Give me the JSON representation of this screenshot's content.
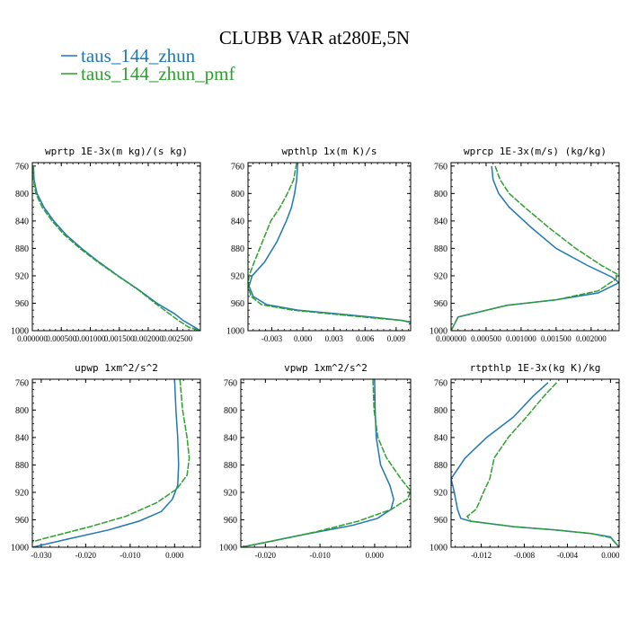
{
  "title": "CLUBB VAR at280E,5N",
  "legend": [
    {
      "name": "taus_144_zhun",
      "color": "#1f77b4"
    },
    {
      "name": "taus_144_zhun_pmf",
      "color": "#2ca02c"
    }
  ],
  "chart_data": [
    {
      "type": "line",
      "title": "wprtp  1E-3x(m kg)/(s kg)",
      "xlim": [
        0,
        0.0029
      ],
      "ylim": [
        1000,
        755
      ],
      "y_reversed": true,
      "yticks": [
        760,
        800,
        840,
        880,
        920,
        960,
        1000
      ],
      "xticks": [
        0,
        0.0005,
        0.001,
        0.0015,
        0.002,
        0.0025
      ],
      "xtick_labels": [
        "0.000000",
        "0.000500",
        "0.001000",
        "0.001500",
        "0.002000",
        "0.002500"
      ],
      "series": [
        {
          "name": "taus_144_zhun",
          "points": [
            [
              2e-05,
              760
            ],
            [
              3e-05,
              780
            ],
            [
              8e-05,
              800
            ],
            [
              0.0002,
              820
            ],
            [
              0.00037,
              840
            ],
            [
              0.00058,
              860
            ],
            [
              0.00085,
              880
            ],
            [
              0.00115,
              900
            ],
            [
              0.00148,
              920
            ],
            [
              0.00183,
              940
            ],
            [
              0.00215,
              960
            ],
            [
              0.00245,
              975
            ],
            [
              0.0026,
              985
            ],
            [
              0.0028,
              995
            ],
            [
              0.0029,
              1000
            ]
          ]
        },
        {
          "name": "taus_144_zhun_pmf",
          "points": [
            [
              2e-05,
              760
            ],
            [
              2e-05,
              780
            ],
            [
              6e-05,
              800
            ],
            [
              0.00017,
              820
            ],
            [
              0.00034,
              840
            ],
            [
              0.00055,
              860
            ],
            [
              0.00082,
              880
            ],
            [
              0.00113,
              900
            ],
            [
              0.00147,
              920
            ],
            [
              0.00182,
              940
            ],
            [
              0.00212,
              960
            ],
            [
              0.00236,
              975
            ],
            [
              0.00252,
              985
            ],
            [
              0.0027,
              995
            ],
            [
              0.0029,
              1000
            ]
          ]
        }
      ]
    },
    {
      "type": "line",
      "title": "wpthlp  1x(m K)/s",
      "xlim": [
        -0.0053,
        0.0104
      ],
      "ylim": [
        1000,
        755
      ],
      "y_reversed": true,
      "yticks": [
        760,
        800,
        840,
        880,
        920,
        960,
        1000
      ],
      "xticks": [
        -0.003,
        0,
        0.003,
        0.006,
        0.009
      ],
      "xtick_labels": [
        "-0.003",
        "0.000",
        "0.003",
        "0.006",
        "0.009"
      ],
      "series": [
        {
          "name": "taus_144_zhun",
          "points": [
            [
              -0.0005,
              755
            ],
            [
              -0.0006,
              780
            ],
            [
              -0.0008,
              800
            ],
            [
              -0.0011,
              820
            ],
            [
              -0.0016,
              840
            ],
            [
              -0.0025,
              870
            ],
            [
              -0.0037,
              900
            ],
            [
              -0.0049,
              920
            ],
            [
              -0.0052,
              935
            ],
            [
              -0.0048,
              950
            ],
            [
              -0.0035,
              962
            ],
            [
              -0.0005,
              970
            ],
            [
              0.003,
              975
            ],
            [
              0.0065,
              980
            ],
            [
              0.0095,
              985
            ],
            [
              0.0104,
              988
            ]
          ]
        },
        {
          "name": "taus_144_zhun_pmf",
          "points": [
            [
              -0.0006,
              755
            ],
            [
              -0.0009,
              780
            ],
            [
              -0.0015,
              800
            ],
            [
              -0.0022,
              820
            ],
            [
              -0.0031,
              840
            ],
            [
              -0.0039,
              870
            ],
            [
              -0.0047,
              900
            ],
            [
              -0.0052,
              920
            ],
            [
              -0.0053,
              935
            ],
            [
              -0.005,
              950
            ],
            [
              -0.004,
              962
            ],
            [
              -0.001,
              970
            ],
            [
              0.003,
              976
            ],
            [
              0.0065,
              981
            ],
            [
              0.0095,
              985
            ],
            [
              0.0104,
              987
            ]
          ]
        }
      ]
    },
    {
      "type": "line",
      "title": "wprcp  1E-3x(m/s) (kg/kg)",
      "xlim": [
        0,
        0.0024
      ],
      "ylim": [
        1000,
        755
      ],
      "y_reversed": true,
      "yticks": [
        760,
        800,
        840,
        880,
        920,
        960,
        1000
      ],
      "xticks": [
        0,
        0.0005,
        0.001,
        0.0015,
        0.002
      ],
      "xtick_labels": [
        "0.000000",
        "0.000500",
        "0.001000",
        "0.001500",
        "0.002000"
      ],
      "series": [
        {
          "name": "taus_144_zhun",
          "points": [
            [
              0.00058,
              760
            ],
            [
              0.0006,
              780
            ],
            [
              0.00068,
              800
            ],
            [
              0.00083,
              820
            ],
            [
              0.00115,
              850
            ],
            [
              0.0015,
              880
            ],
            [
              0.00195,
              905
            ],
            [
              0.0023,
              922
            ],
            [
              0.0024,
              930
            ],
            [
              0.0021,
              945
            ],
            [
              0.0015,
              955
            ],
            [
              0.0008,
              963
            ],
            [
              0.0001,
              980
            ],
            [
              0,
              1000
            ]
          ]
        },
        {
          "name": "taus_144_zhun_pmf",
          "points": [
            [
              0.00063,
              760
            ],
            [
              0.0007,
              780
            ],
            [
              0.00083,
              800
            ],
            [
              0.00105,
              820
            ],
            [
              0.0014,
              850
            ],
            [
              0.00178,
              880
            ],
            [
              0.00215,
              905
            ],
            [
              0.00238,
              918
            ],
            [
              0.00235,
              925
            ],
            [
              0.0021,
              942
            ],
            [
              0.0015,
              955
            ],
            [
              0.0008,
              963
            ],
            [
              0.0001,
              980
            ],
            [
              0,
              1000
            ]
          ]
        }
      ]
    },
    {
      "type": "line",
      "title": "upwp  1xm^2/s^2",
      "xlim": [
        -0.032,
        0.0058
      ],
      "ylim": [
        1000,
        755
      ],
      "y_reversed": true,
      "yticks": [
        760,
        800,
        840,
        880,
        920,
        960,
        1000
      ],
      "xticks": [
        -0.03,
        -0.02,
        -0.01,
        0
      ],
      "xtick_labels": [
        "-0.030",
        "-0.020",
        "-0.010",
        "0.000"
      ],
      "series": [
        {
          "name": "taus_144_zhun",
          "points": [
            [
              0,
              755
            ],
            [
              0.0003,
              800
            ],
            [
              0.0007,
              840
            ],
            [
              0.0009,
              880
            ],
            [
              0.0007,
              910
            ],
            [
              -0.0005,
              930
            ],
            [
              -0.003,
              948
            ],
            [
              -0.008,
              962
            ],
            [
              -0.015,
              975
            ],
            [
              -0.024,
              988
            ],
            [
              -0.032,
              1000
            ]
          ]
        },
        {
          "name": "taus_144_zhun_pmf",
          "points": [
            [
              0.0012,
              755
            ],
            [
              0.0018,
              800
            ],
            [
              0.0028,
              840
            ],
            [
              0.0033,
              870
            ],
            [
              0.0028,
              895
            ],
            [
              0.0005,
              915
            ],
            [
              -0.004,
              935
            ],
            [
              -0.011,
              955
            ],
            [
              -0.019,
              970
            ],
            [
              -0.028,
              985
            ],
            [
              -0.032,
              992
            ]
          ]
        }
      ]
    },
    {
      "type": "line",
      "title": "vpwp  1xm^2/s^2",
      "xlim": [
        -0.0245,
        0.0066
      ],
      "ylim": [
        1000,
        755
      ],
      "y_reversed": true,
      "yticks": [
        760,
        800,
        840,
        880,
        920,
        960,
        1000
      ],
      "xticks": [
        -0.02,
        -0.01,
        0
      ],
      "xtick_labels": [
        "-0.020",
        "-0.010",
        "0.000"
      ],
      "series": [
        {
          "name": "taus_144_zhun",
          "points": [
            [
              0,
              755
            ],
            [
              0.0001,
              800
            ],
            [
              0.0003,
              840
            ],
            [
              0.0011,
              880
            ],
            [
              0.0028,
              910
            ],
            [
              0.0035,
              930
            ],
            [
              0.003,
              945
            ],
            [
              0.0005,
              958
            ],
            [
              -0.004,
              968
            ],
            [
              -0.012,
              980
            ],
            [
              -0.02,
              993
            ],
            [
              -0.0245,
              1000
            ]
          ]
        },
        {
          "name": "taus_144_zhun_pmf",
          "points": [
            [
              -0.0003,
              755
            ],
            [
              -0.0001,
              800
            ],
            [
              0.0006,
              840
            ],
            [
              0.0022,
              870
            ],
            [
              0.0048,
              900
            ],
            [
              0.0066,
              918
            ],
            [
              0.006,
              930
            ],
            [
              0.003,
              945
            ],
            [
              -0.003,
              962
            ],
            [
              -0.011,
              978
            ],
            [
              -0.02,
              993
            ],
            [
              -0.0245,
              1000
            ]
          ]
        }
      ]
    },
    {
      "type": "line",
      "title": "rtpthlp  1E-3x(kg K)/kg",
      "xlim": [
        -0.0148,
        0.0008
      ],
      "ylim": [
        1000,
        755
      ],
      "y_reversed": true,
      "yticks": [
        760,
        800,
        840,
        880,
        920,
        960,
        1000
      ],
      "xticks": [
        -0.012,
        -0.008,
        -0.004,
        0
      ],
      "xtick_labels": [
        "-0.012",
        "-0.008",
        "-0.004",
        "0.000"
      ],
      "series": [
        {
          "name": "taus_144_zhun",
          "points": [
            [
              -0.0058,
              760
            ],
            [
              -0.0072,
              780
            ],
            [
              -0.009,
              810
            ],
            [
              -0.0115,
              840
            ],
            [
              -0.0135,
              870
            ],
            [
              -0.0148,
              900
            ],
            [
              -0.0145,
              920
            ],
            [
              -0.0142,
              945
            ],
            [
              -0.0139,
              958
            ],
            [
              -0.013,
              962
            ],
            [
              -0.009,
              970
            ],
            [
              -0.005,
              975
            ],
            [
              -0.0018,
              980
            ],
            [
              0,
              985
            ],
            [
              0.0008,
              1000
            ]
          ]
        },
        {
          "name": "taus_144_zhun_pmf",
          "points": [
            [
              -0.005,
              760
            ],
            [
              -0.0062,
              780
            ],
            [
              -0.0078,
              810
            ],
            [
              -0.0095,
              840
            ],
            [
              -0.0108,
              870
            ],
            [
              -0.0112,
              900
            ],
            [
              -0.0118,
              920
            ],
            [
              -0.0122,
              935
            ],
            [
              -0.0125,
              945
            ],
            [
              -0.0133,
              955
            ],
            [
              -0.013,
              962
            ],
            [
              -0.009,
              970
            ],
            [
              -0.005,
              975
            ],
            [
              -0.0018,
              980
            ],
            [
              0,
              986
            ],
            [
              0.0008,
              1000
            ]
          ]
        }
      ]
    }
  ]
}
